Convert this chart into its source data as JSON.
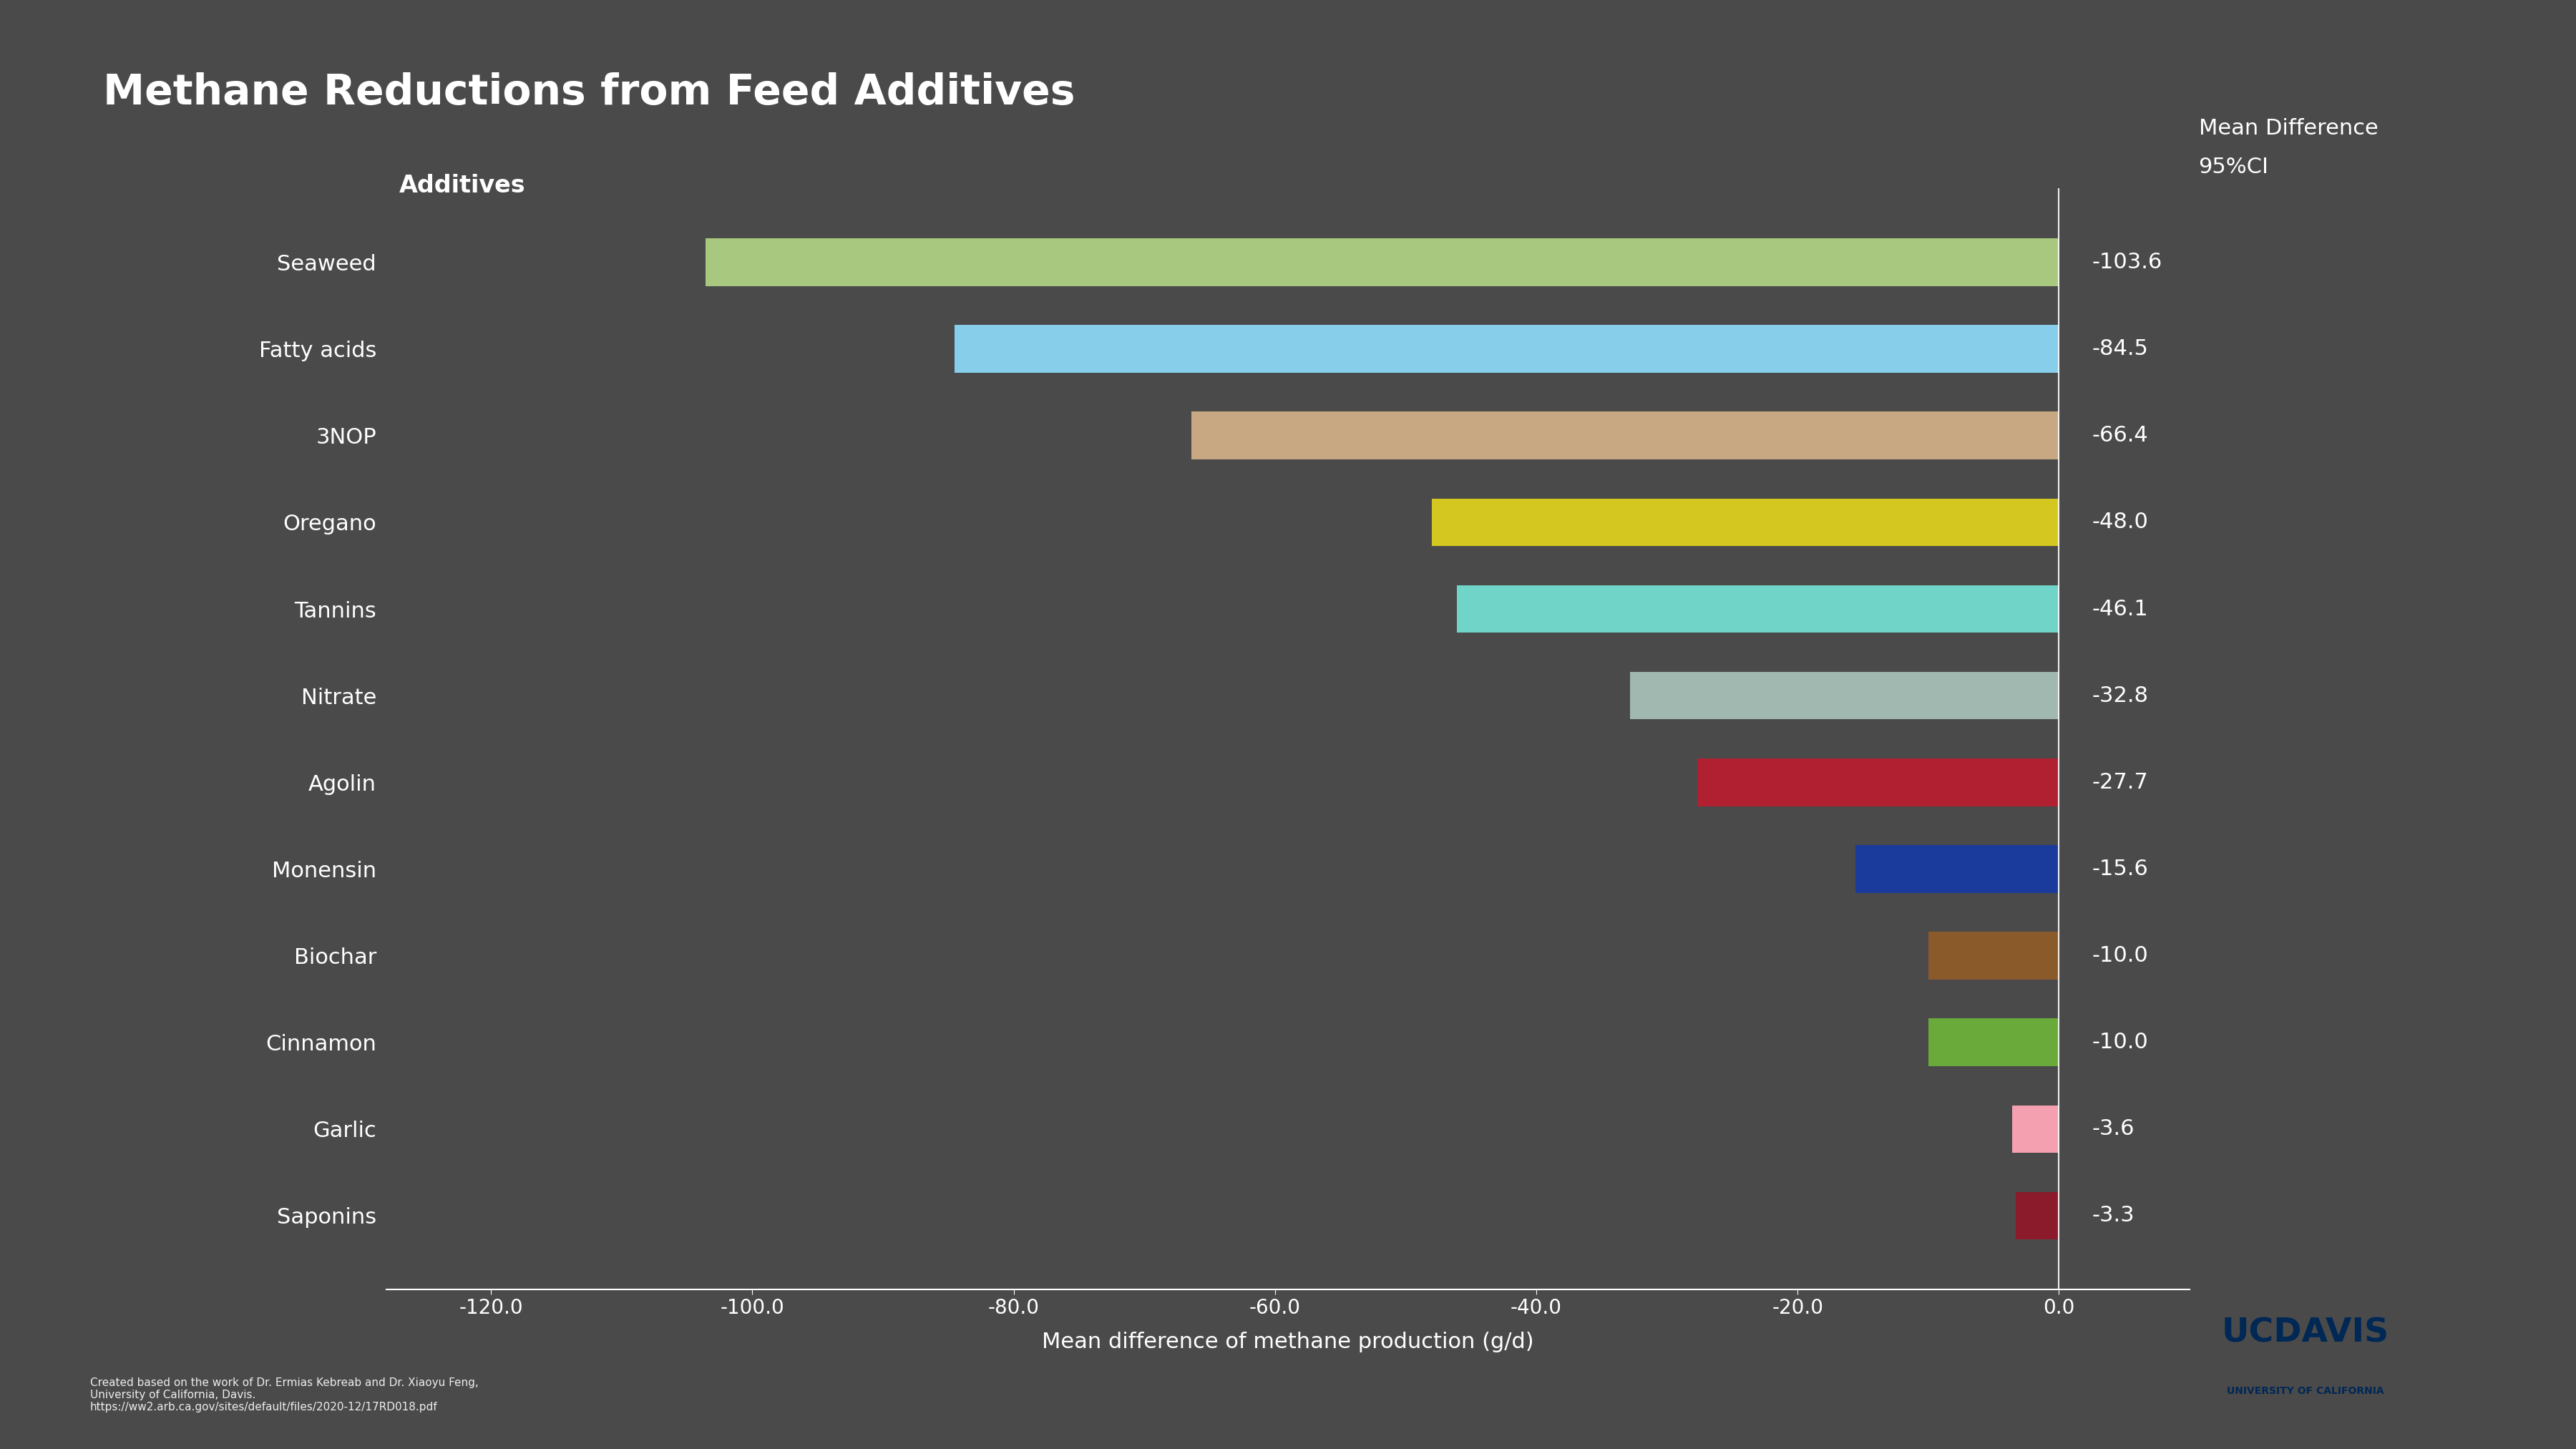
{
  "title": "Methane Reductions from Feed Additives",
  "xlabel": "Mean difference of methane production (g/d)",
  "ylabel_header": "Additives",
  "value_header_line1": "Mean Difference",
  "value_header_line2": "95%CI",
  "background_color": "#4a4a4a",
  "text_color": "#ffffff",
  "additives": [
    "Seaweed",
    "Fatty acids",
    "3NOP",
    "Oregano",
    "Tannins",
    "Nitrate",
    "Agolin",
    "Monensin",
    "Biochar",
    "Cinnamon",
    "Garlic",
    "Saponins"
  ],
  "values": [
    -103.6,
    -84.5,
    -66.4,
    -48.0,
    -46.1,
    -32.8,
    -27.7,
    -15.6,
    -10.0,
    -10.0,
    -3.6,
    -3.3
  ],
  "bar_colors": [
    "#a8c880",
    "#87ceeb",
    "#c8a882",
    "#d4c820",
    "#70d4c8",
    "#a0b8b0",
    "#b02030",
    "#1a3a9c",
    "#8b5a2b",
    "#6aaa3a",
    "#f4a0b0",
    "#8b1a2a"
  ],
  "xlim": [
    -128,
    10
  ],
  "xticks": [
    -120.0,
    -100.0,
    -80.0,
    -60.0,
    -40.0,
    -20.0,
    0.0
  ],
  "title_fontsize": 42,
  "label_fontsize": 22,
  "tick_fontsize": 20,
  "value_label_fontsize": 22,
  "header_fontsize": 22,
  "additive_fontsize": 22,
  "footnote": "Created based on the work of Dr. Ermias Kebreab and Dr. Xiaoyu Feng,\nUniversity of California, Davis.\nhttps://ww2.arb.ca.gov/sites/default/files/2020-12/17RD018.pdf",
  "ucdavis_blue": "#002855",
  "ucdavis_gold": "#DAAA00"
}
